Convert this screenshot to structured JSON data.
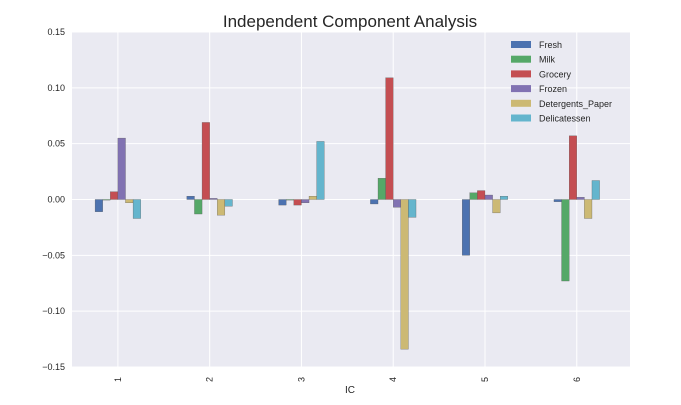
{
  "chart_data": {
    "type": "bar",
    "title": "Independent Component Analysis",
    "xlabel": "IC",
    "ylabel": "",
    "categories": [
      "1",
      "2",
      "3",
      "4",
      "5",
      "6"
    ],
    "ylim": [
      -0.15,
      0.15
    ],
    "yticks": [
      0.15,
      0.1,
      0.05,
      0.0,
      -0.05,
      -0.1,
      -0.15
    ],
    "ytick_labels": [
      "0.15",
      "0.10",
      "0.05",
      "0.00",
      "−0.05",
      "−0.10",
      "−0.15"
    ],
    "grid": true,
    "legend_position": "top-right",
    "series": [
      {
        "name": "Fresh",
        "color": "#4c72b0",
        "values": [
          -0.011,
          0.003,
          -0.005,
          -0.004,
          -0.05,
          -0.002
        ]
      },
      {
        "name": "Milk",
        "color": "#55a868",
        "values": [
          0.0,
          -0.013,
          0.0,
          0.019,
          0.006,
          -0.073
        ]
      },
      {
        "name": "Grocery",
        "color": "#c44e52",
        "values": [
          0.007,
          0.069,
          -0.005,
          0.109,
          0.008,
          0.057
        ]
      },
      {
        "name": "Frozen",
        "color": "#8172b2",
        "values": [
          0.055,
          0.001,
          -0.003,
          -0.007,
          0.004,
          0.002
        ]
      },
      {
        "name": "Detergents_Paper",
        "color": "#ccb974",
        "values": [
          -0.003,
          -0.014,
          0.003,
          -0.134,
          -0.012,
          -0.017
        ]
      },
      {
        "name": "Delicatessen",
        "color": "#64b5cd",
        "values": [
          -0.017,
          -0.006,
          0.052,
          -0.016,
          0.003,
          0.017
        ]
      }
    ]
  }
}
